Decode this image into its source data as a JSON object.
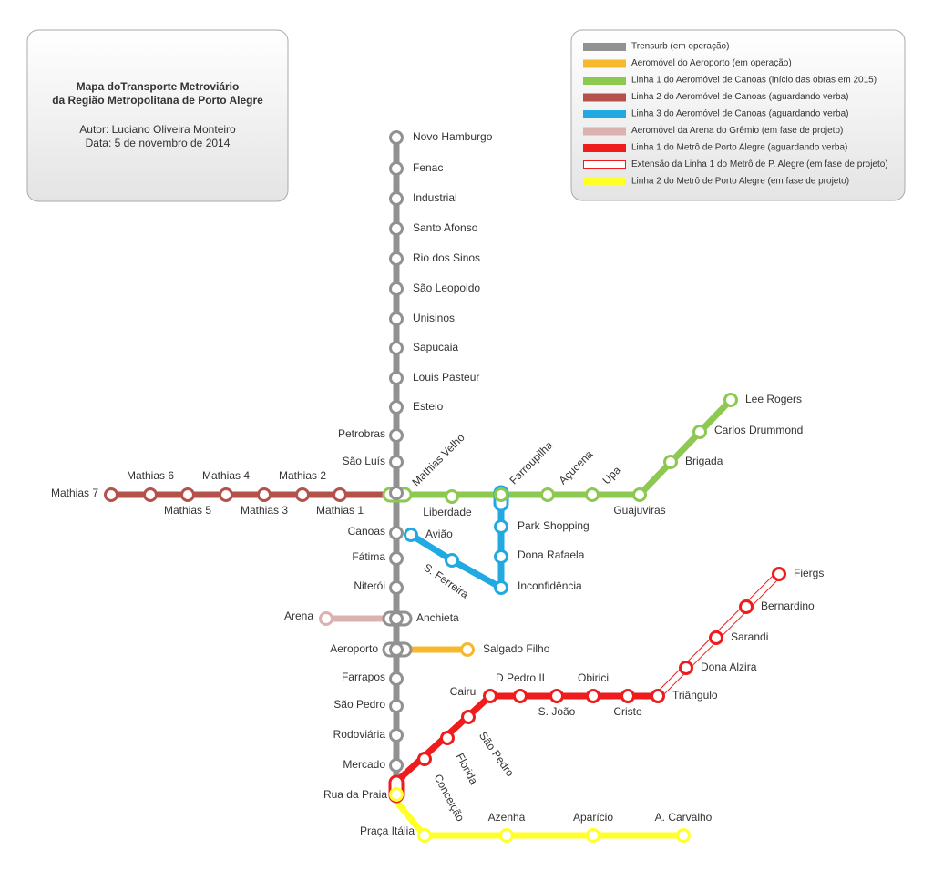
{
  "header": {
    "title": [
      "Mapa doTransporte Metroviário",
      "da Região Metropolitana de Porto Alegre"
    ],
    "author": "Autor: Luciano Oliveira Monteiro",
    "date": "Data: 5 de novembro de 2014"
  },
  "legend": [
    {
      "label": "Trensurb (em operação)",
      "color": "#919191"
    },
    {
      "label": "Aeromóvel do Aeroporto (em operação)",
      "color": "#f6b92e"
    },
    {
      "label": "Linha 1 do Aeromóvel de Canoas (início das obras em 2015)",
      "color": "#8dc851"
    },
    {
      "label": "Linha 2 do Aeromóvel de Canoas (aguardando verba)",
      "color": "#b4514b"
    },
    {
      "label": "Linha 3 do Aeromóvel de Canoas (aguardando verba)",
      "color": "#22a9e1"
    },
    {
      "label": "Aeromóvel da Arena do Grêmio (em fase de projeto)",
      "color": "#dcb2b0"
    },
    {
      "label": "Linha 1 do Metrô de Porto Alegre (aguardando verba)",
      "color": "#ee1c1c"
    },
    {
      "label": "Extensão da Linha 1 do Metrô de P. Alegre (em fase de projeto)",
      "color": "#ee1c1c",
      "style": "outline"
    },
    {
      "label": "Linha 2 do Metrô de Porto Alegre (em fase de projeto)",
      "color": "#ffff2a"
    }
  ],
  "stations": [
    "Novo Hamburgo",
    "Fenac",
    "Industrial",
    "Santo Afonso",
    "Rio dos Sinos",
    "São Leopoldo",
    "Unisinos",
    "Sapucaia",
    "Louis Pasteur",
    "Esteio",
    "Petrobras",
    "São Luís",
    "Mathias Velho",
    "Canoas",
    "Fátima",
    "Niterói",
    "Anchieta",
    "Aeroporto",
    "Farrapos",
    "São Pedro",
    "Rodoviária",
    "Mercado",
    "Rua da Praia",
    "Mathias 7",
    "Mathias 6",
    "Mathias 5",
    "Mathias 4",
    "Mathias 3",
    "Mathias 2",
    "Mathias 1",
    "Liberdade",
    "Farroupilha",
    "Açucena",
    "Upa",
    "Guajuviras",
    "Brigada",
    "Carlos Drummond",
    "Lee Rogers",
    "Park Shopping",
    "Dona Rafaela",
    "Inconfidência",
    "Avião",
    "S. Ferreira",
    "Arena",
    "Salgado Filho",
    "Conceição",
    "Florida",
    "São Pedro",
    "Cairu",
    "D Pedro II",
    "S. João",
    "Obirici",
    "Cristo",
    "Triângulo",
    "Dona Alzira",
    "Sarandi",
    "Bernardino",
    "Fiergs",
    "Praça Itália",
    "Azenha",
    "Aparício",
    "A. Carvalho"
  ]
}
